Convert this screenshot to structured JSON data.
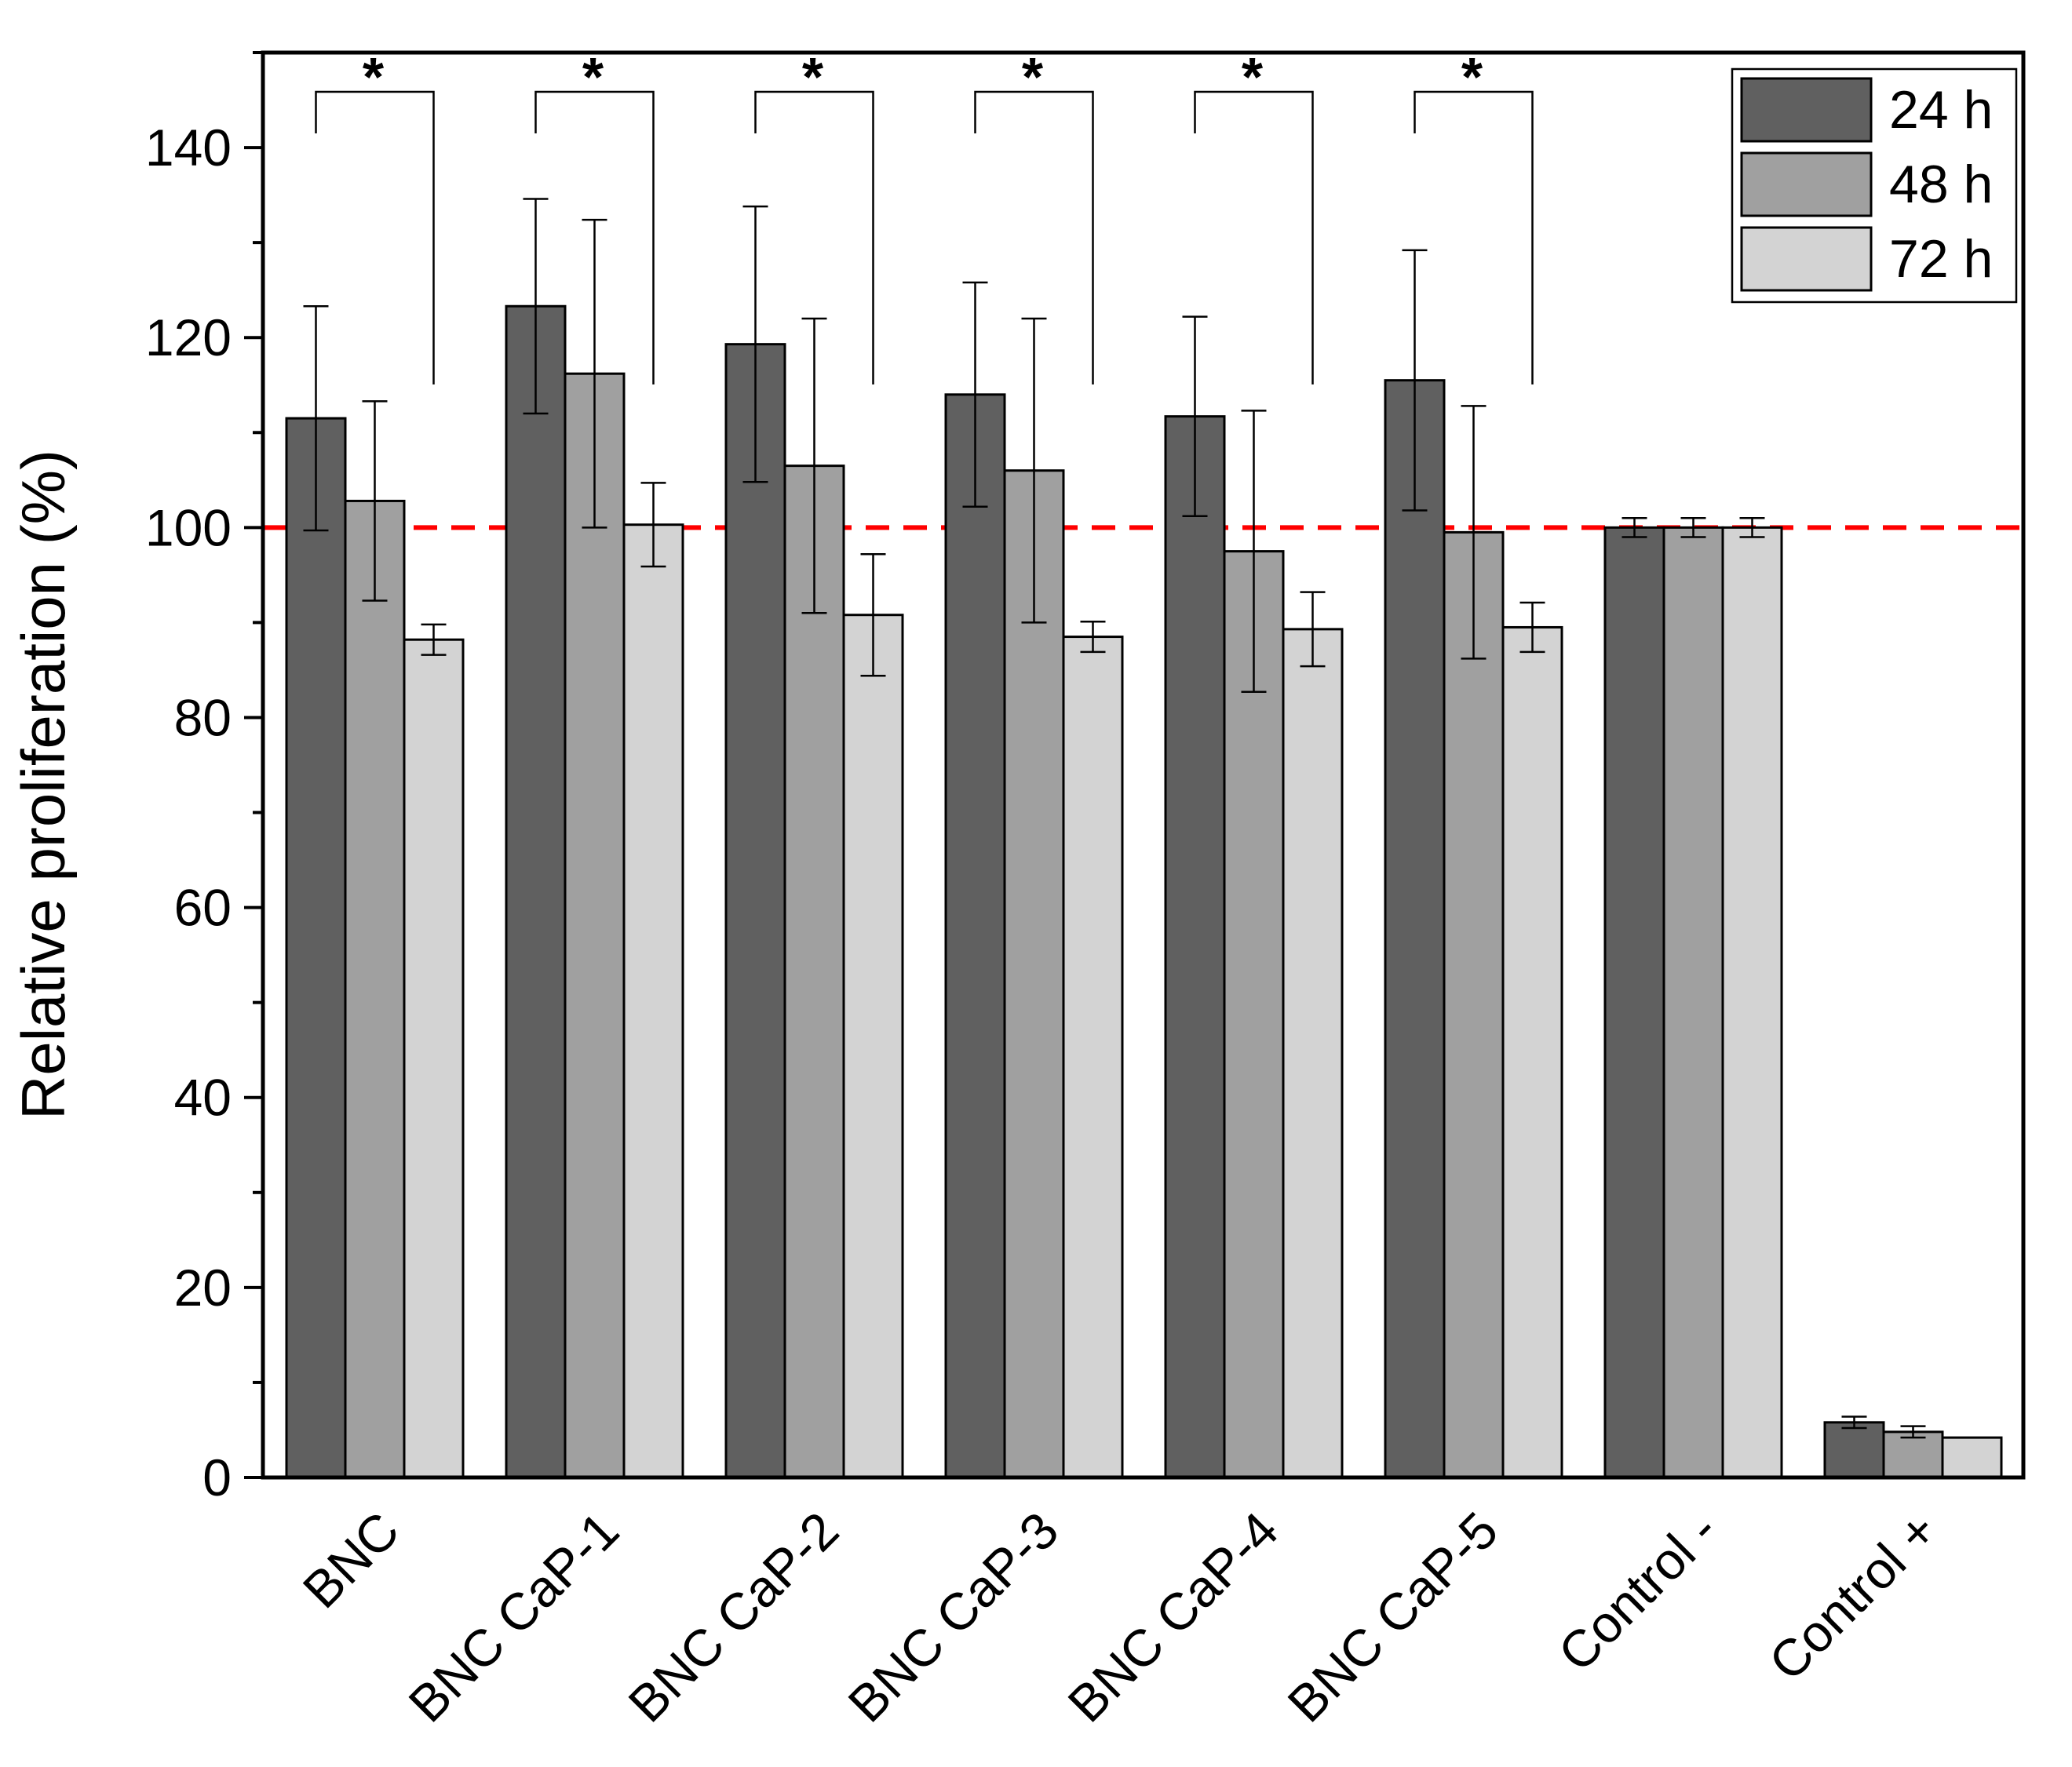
{
  "chart_data": {
    "type": "bar",
    "title": "",
    "xlabel": "",
    "ylabel": "Relative proliferation (%)",
    "ylim": [
      0,
      150
    ],
    "yticks": [
      0,
      20,
      40,
      60,
      80,
      100,
      120,
      140
    ],
    "categories": [
      "BNC",
      "BNC CaP-1",
      "BNC CaP-2",
      "BNC CaP-3",
      "BNC CaP-4",
      "BNC CaP-5",
      "Control -",
      "Control +"
    ],
    "series": [
      {
        "name": "24 h",
        "color": "#606060",
        "values": [
          111.5,
          123.3,
          119.3,
          114.0,
          111.7,
          115.5,
          100.0,
          5.8
        ],
        "errors": [
          11.8,
          11.3,
          14.5,
          11.8,
          10.5,
          13.7,
          1.0,
          0.6
        ]
      },
      {
        "name": "48 h",
        "color": "#a0a0a0",
        "values": [
          102.8,
          116.2,
          106.5,
          106.0,
          97.5,
          99.5,
          100.0,
          4.8
        ],
        "errors": [
          10.5,
          16.2,
          15.5,
          16.0,
          14.8,
          13.3,
          1.0,
          0.6
        ]
      },
      {
        "name": "72 h",
        "color": "#d3d3d3",
        "values": [
          88.2,
          100.3,
          90.8,
          88.5,
          89.3,
          89.5,
          100.0,
          4.2
        ],
        "errors": [
          1.6,
          4.4,
          6.4,
          1.6,
          3.9,
          2.6,
          1.0,
          0.0
        ]
      }
    ],
    "reference_line": {
      "value": 100,
      "color": "#ff0000",
      "style": "dashed"
    },
    "significance": {
      "marker": "*",
      "groups": [
        "BNC",
        "BNC CaP-1",
        "BNC CaP-2",
        "BNC CaP-3",
        "BNC CaP-4",
        "BNC CaP-5"
      ]
    },
    "legend": {
      "position": "top-right"
    }
  }
}
